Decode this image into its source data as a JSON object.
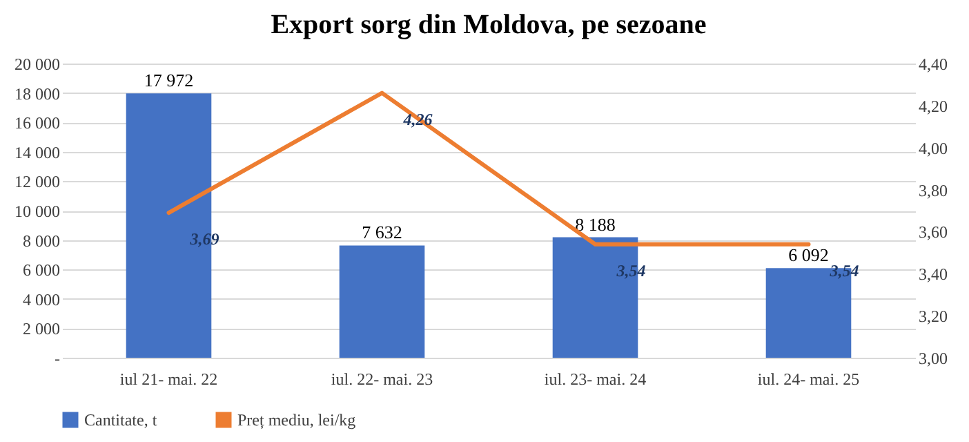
{
  "chart_data": {
    "type": "bar",
    "title": "Export sorg din Moldova, pe sezoane",
    "categories": [
      "iul 21- mai. 22",
      "iul. 22- mai. 23",
      "iul. 23- mai. 24",
      "iul. 24- mai. 25"
    ],
    "series": [
      {
        "name": "Cantitate, t",
        "type": "bar",
        "color": "#4472c4",
        "values": [
          17972,
          7632,
          8188,
          6092
        ],
        "value_labels": [
          "17 972",
          "7 632",
          "8 188",
          "6 092"
        ]
      },
      {
        "name": "Preț mediu, lei/kg",
        "type": "line",
        "axis": "y2",
        "color": "#ed7d31",
        "values": [
          3.69,
          4.26,
          3.54,
          3.54
        ],
        "value_labels": [
          "3,69",
          "4,26",
          "3,54",
          "3,54"
        ]
      }
    ],
    "ylim": [
      0,
      20000
    ],
    "yticks": [
      {
        "value": 0,
        "label": "-"
      },
      {
        "value": 2000,
        "label": "2 000"
      },
      {
        "value": 4000,
        "label": "4 000"
      },
      {
        "value": 6000,
        "label": "6 000"
      },
      {
        "value": 8000,
        "label": "8 000"
      },
      {
        "value": 10000,
        "label": "10 000"
      },
      {
        "value": 12000,
        "label": "12 000"
      },
      {
        "value": 14000,
        "label": "14 000"
      },
      {
        "value": 16000,
        "label": "16 000"
      },
      {
        "value": 18000,
        "label": "18 000"
      },
      {
        "value": 20000,
        "label": "20 000"
      }
    ],
    "y2lim": [
      3,
      4.4
    ],
    "y2ticks": [
      {
        "value": 3,
        "label": "3,00"
      },
      {
        "value": 3.2,
        "label": "3,20"
      },
      {
        "value": 3.4,
        "label": "3,40"
      },
      {
        "value": 3.6,
        "label": "3,60"
      },
      {
        "value": 3.8,
        "label": "3,80"
      },
      {
        "value": 4,
        "label": "4,00"
      },
      {
        "value": 4.2,
        "label": "4,20"
      },
      {
        "value": 4.4,
        "label": "4,40"
      }
    ],
    "grid": "y",
    "legend": "bottom"
  }
}
